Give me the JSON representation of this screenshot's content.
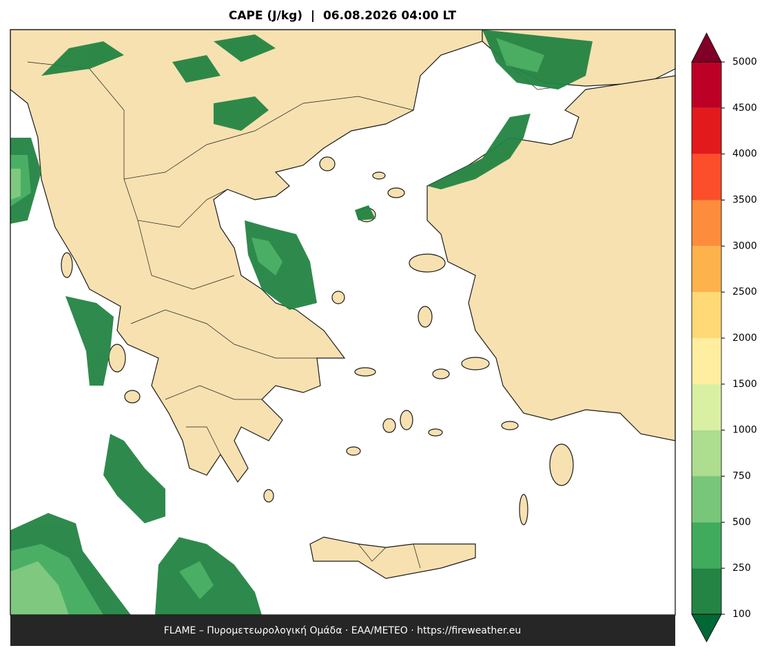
{
  "title": "CAPE (J/kg)  |  06.08.2026 04:00 LT",
  "footer": "FLAME – Πυρομετεωρολογική Ομάδα · ΕΑΑ/METEO · https://fireweather.eu",
  "colorbar": {
    "levels": [
      100,
      250,
      500,
      750,
      1000,
      1500,
      2000,
      2500,
      3000,
      3500,
      4000,
      4500,
      5000
    ],
    "colors": [
      "#238443",
      "#41ab5d",
      "#78c679",
      "#addd8e",
      "#d9f0a3",
      "#ffeda0",
      "#fed976",
      "#feb24c",
      "#fd8d3c",
      "#fc4e2a",
      "#e31a1c",
      "#bd0026"
    ],
    "under_color": "#006837",
    "over_color": "#800026"
  }
}
